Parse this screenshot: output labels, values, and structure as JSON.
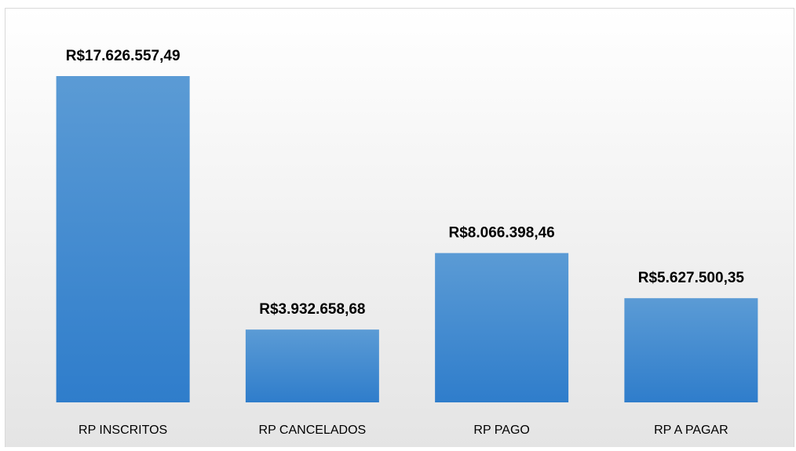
{
  "chart_data": {
    "type": "bar",
    "categories": [
      "RP INSCRITOS",
      "RP CANCELADOS",
      "RP PAGO",
      "RP A PAGAR"
    ],
    "values": [
      17626557.49,
      3932658.68,
      8066398.46,
      5627500.35
    ],
    "value_labels": [
      "R$17.626.557,49",
      "R$3.932.658,68",
      "R$8.066.398,46",
      "R$5.627.500,35"
    ],
    "color": "#4a8fd6"
  }
}
